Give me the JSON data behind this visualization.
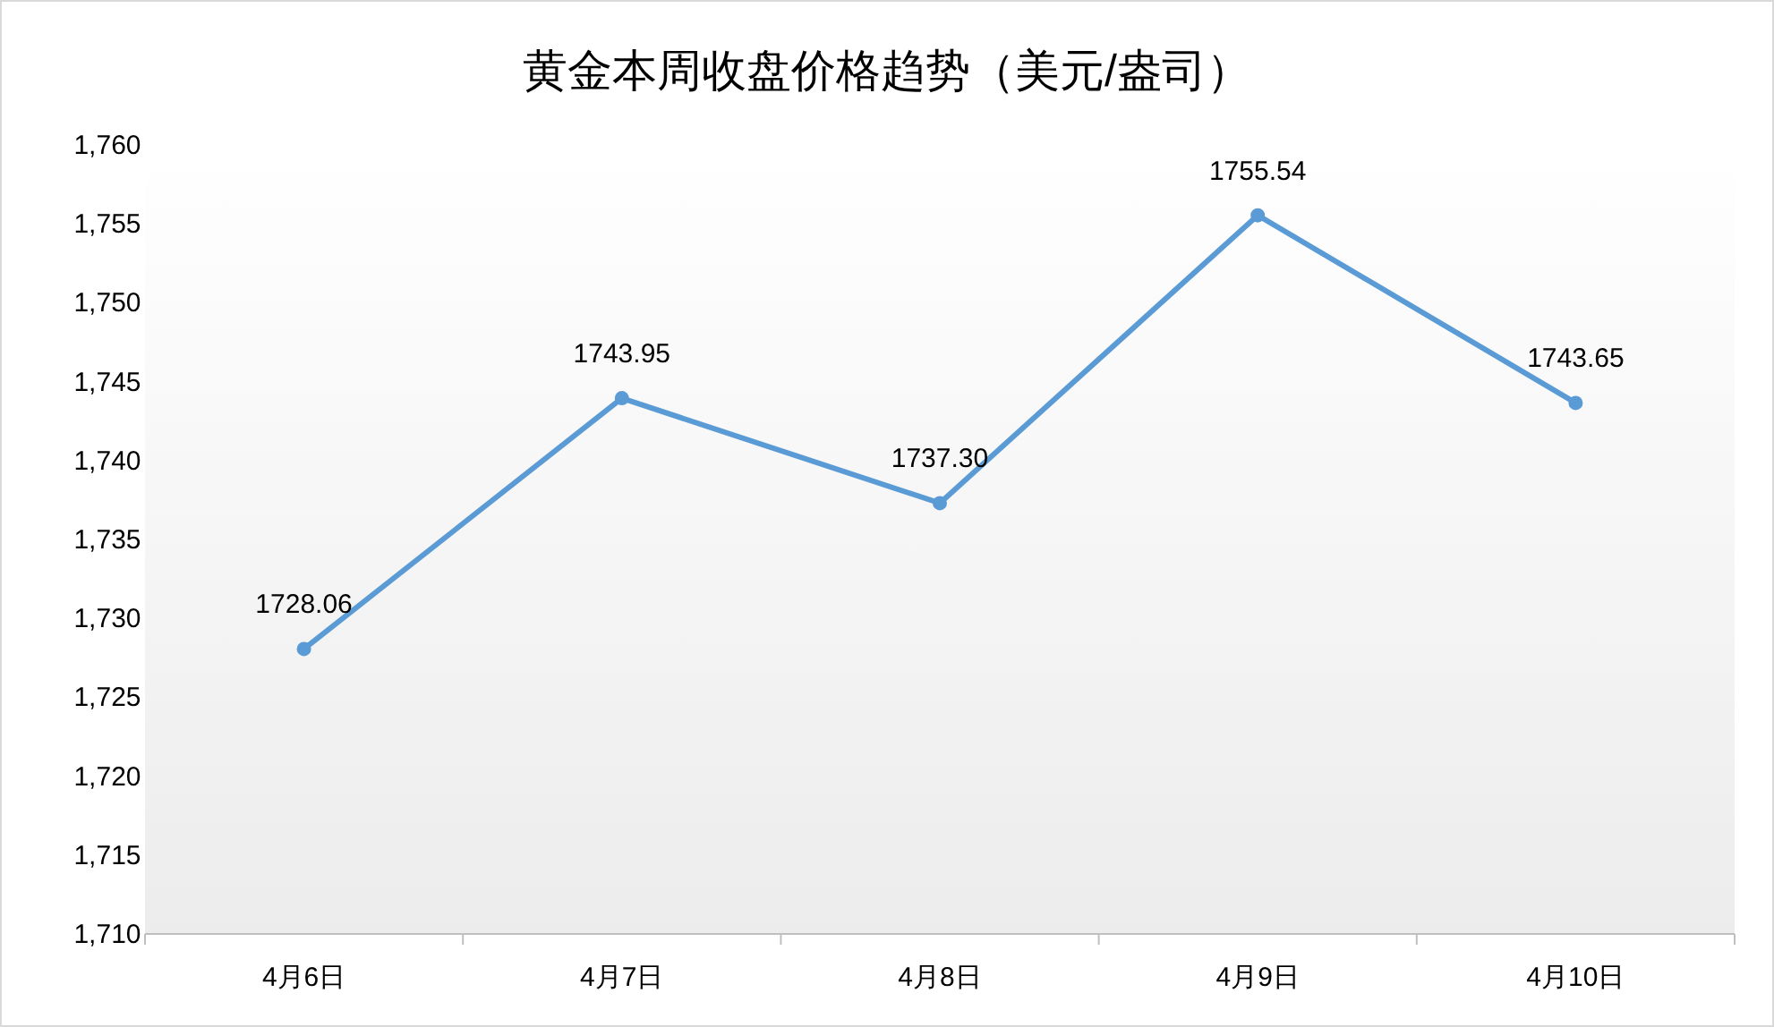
{
  "chart_data": {
    "type": "line",
    "title": "黄金本周收盘价格趋势（美元/盎司）",
    "categories": [
      "4月6日",
      "4月7日",
      "4月8日",
      "4月9日",
      "4月10日"
    ],
    "series": [
      {
        "color": "#5b9bd5",
        "values": [
          1728.06,
          1743.95,
          1737.3,
          1755.54,
          1743.65
        ],
        "value_labels": [
          "1728.06",
          "1743.95",
          "1737.30",
          "1755.54",
          "1743.65"
        ]
      }
    ],
    "ylim": [
      1710,
      1760
    ],
    "yticks": [
      {
        "value": 1710,
        "label": "1,710"
      },
      {
        "value": 1715,
        "label": "1,715"
      },
      {
        "value": 1720,
        "label": "1,720"
      },
      {
        "value": 1725,
        "label": "1,725"
      },
      {
        "value": 1730,
        "label": "1,730"
      },
      {
        "value": 1735,
        "label": "1,735"
      },
      {
        "value": 1740,
        "label": "1,740"
      },
      {
        "value": 1745,
        "label": "1,745"
      },
      {
        "value": 1750,
        "label": "1,750"
      },
      {
        "value": 1755,
        "label": "1,755"
      },
      {
        "value": 1760,
        "label": "1,760"
      }
    ],
    "marker": "circle",
    "line_style": "solid"
  }
}
